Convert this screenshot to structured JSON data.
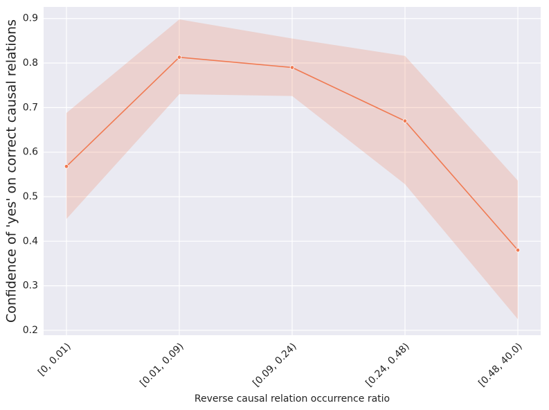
{
  "chart_data": {
    "type": "line",
    "x_label": "Reverse causal relation occurrence ratio",
    "y_label": "Confidence of 'yes' on correct causal relations",
    "categories": [
      "[0, 0.01)",
      "[0.01, 0.09)",
      "[0.09, 0.24)",
      "[0.24, 0.48)",
      "[0.48, 40.0)"
    ],
    "values": [
      0.568,
      0.813,
      0.79,
      0.67,
      0.38
    ],
    "lower": [
      0.45,
      0.73,
      0.726,
      0.528,
      0.225
    ],
    "upper": [
      0.688,
      0.898,
      0.855,
      0.816,
      0.536
    ],
    "color": "#f07a52",
    "ylim": [
      0.189,
      0.926
    ],
    "yticks": [
      0.2,
      0.3,
      0.4,
      0.5,
      0.6,
      0.7,
      0.8,
      0.9
    ],
    "grid": true
  }
}
